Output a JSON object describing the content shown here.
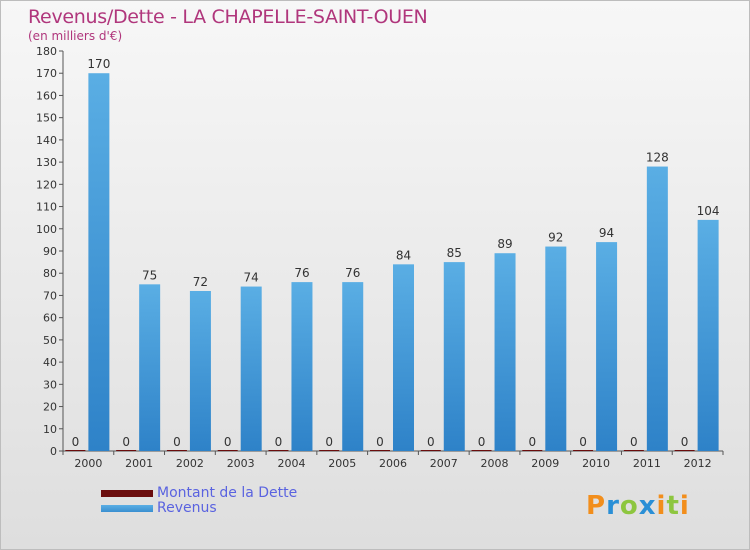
{
  "header": {
    "title": "Revenus/Dette - LA CHAPELLE-SAINT-OUEN",
    "subtitle": "(en milliers d'€)"
  },
  "legend": {
    "debt_label": "Montant de la Dette",
    "revenue_label": "Revenus"
  },
  "logo": {
    "text": "Proxiti",
    "letters": [
      "P",
      "r",
      "o",
      "x",
      "i",
      "t",
      "i"
    ],
    "colors": [
      "#f28e1c",
      "#2a8fd6",
      "#8dc63f",
      "#2a8fd6",
      "#f28e1c",
      "#8dc63f",
      "#f28e1c"
    ]
  },
  "colors": {
    "debt": "#6b0d0d",
    "revenue_top": "#5aaee4",
    "revenue_bottom": "#2e82c8",
    "text": "#333333",
    "title": "#b0367c"
  },
  "chart_data": {
    "type": "bar",
    "title": "Revenus/Dette - LA CHAPELLE-SAINT-OUEN",
    "ylabel": "(en milliers d'€)",
    "xlabel": "",
    "ylim": [
      0,
      180
    ],
    "yticks": [
      0,
      10,
      20,
      30,
      40,
      50,
      60,
      70,
      80,
      90,
      100,
      110,
      120,
      130,
      140,
      150,
      160,
      170,
      180
    ],
    "grid": false,
    "legend_position": "bottom-left",
    "categories": [
      "2000",
      "2001",
      "2002",
      "2003",
      "2004",
      "2005",
      "2006",
      "2007",
      "2008",
      "2009",
      "2010",
      "2011",
      "2012"
    ],
    "series": [
      {
        "name": "Montant de la Dette",
        "values": [
          0,
          0,
          0,
          0,
          0,
          0,
          0,
          0,
          0,
          0,
          0,
          0,
          0
        ]
      },
      {
        "name": "Revenus",
        "values": [
          170,
          75,
          72,
          74,
          76,
          76,
          84,
          85,
          89,
          92,
          94,
          128,
          104
        ]
      }
    ]
  }
}
